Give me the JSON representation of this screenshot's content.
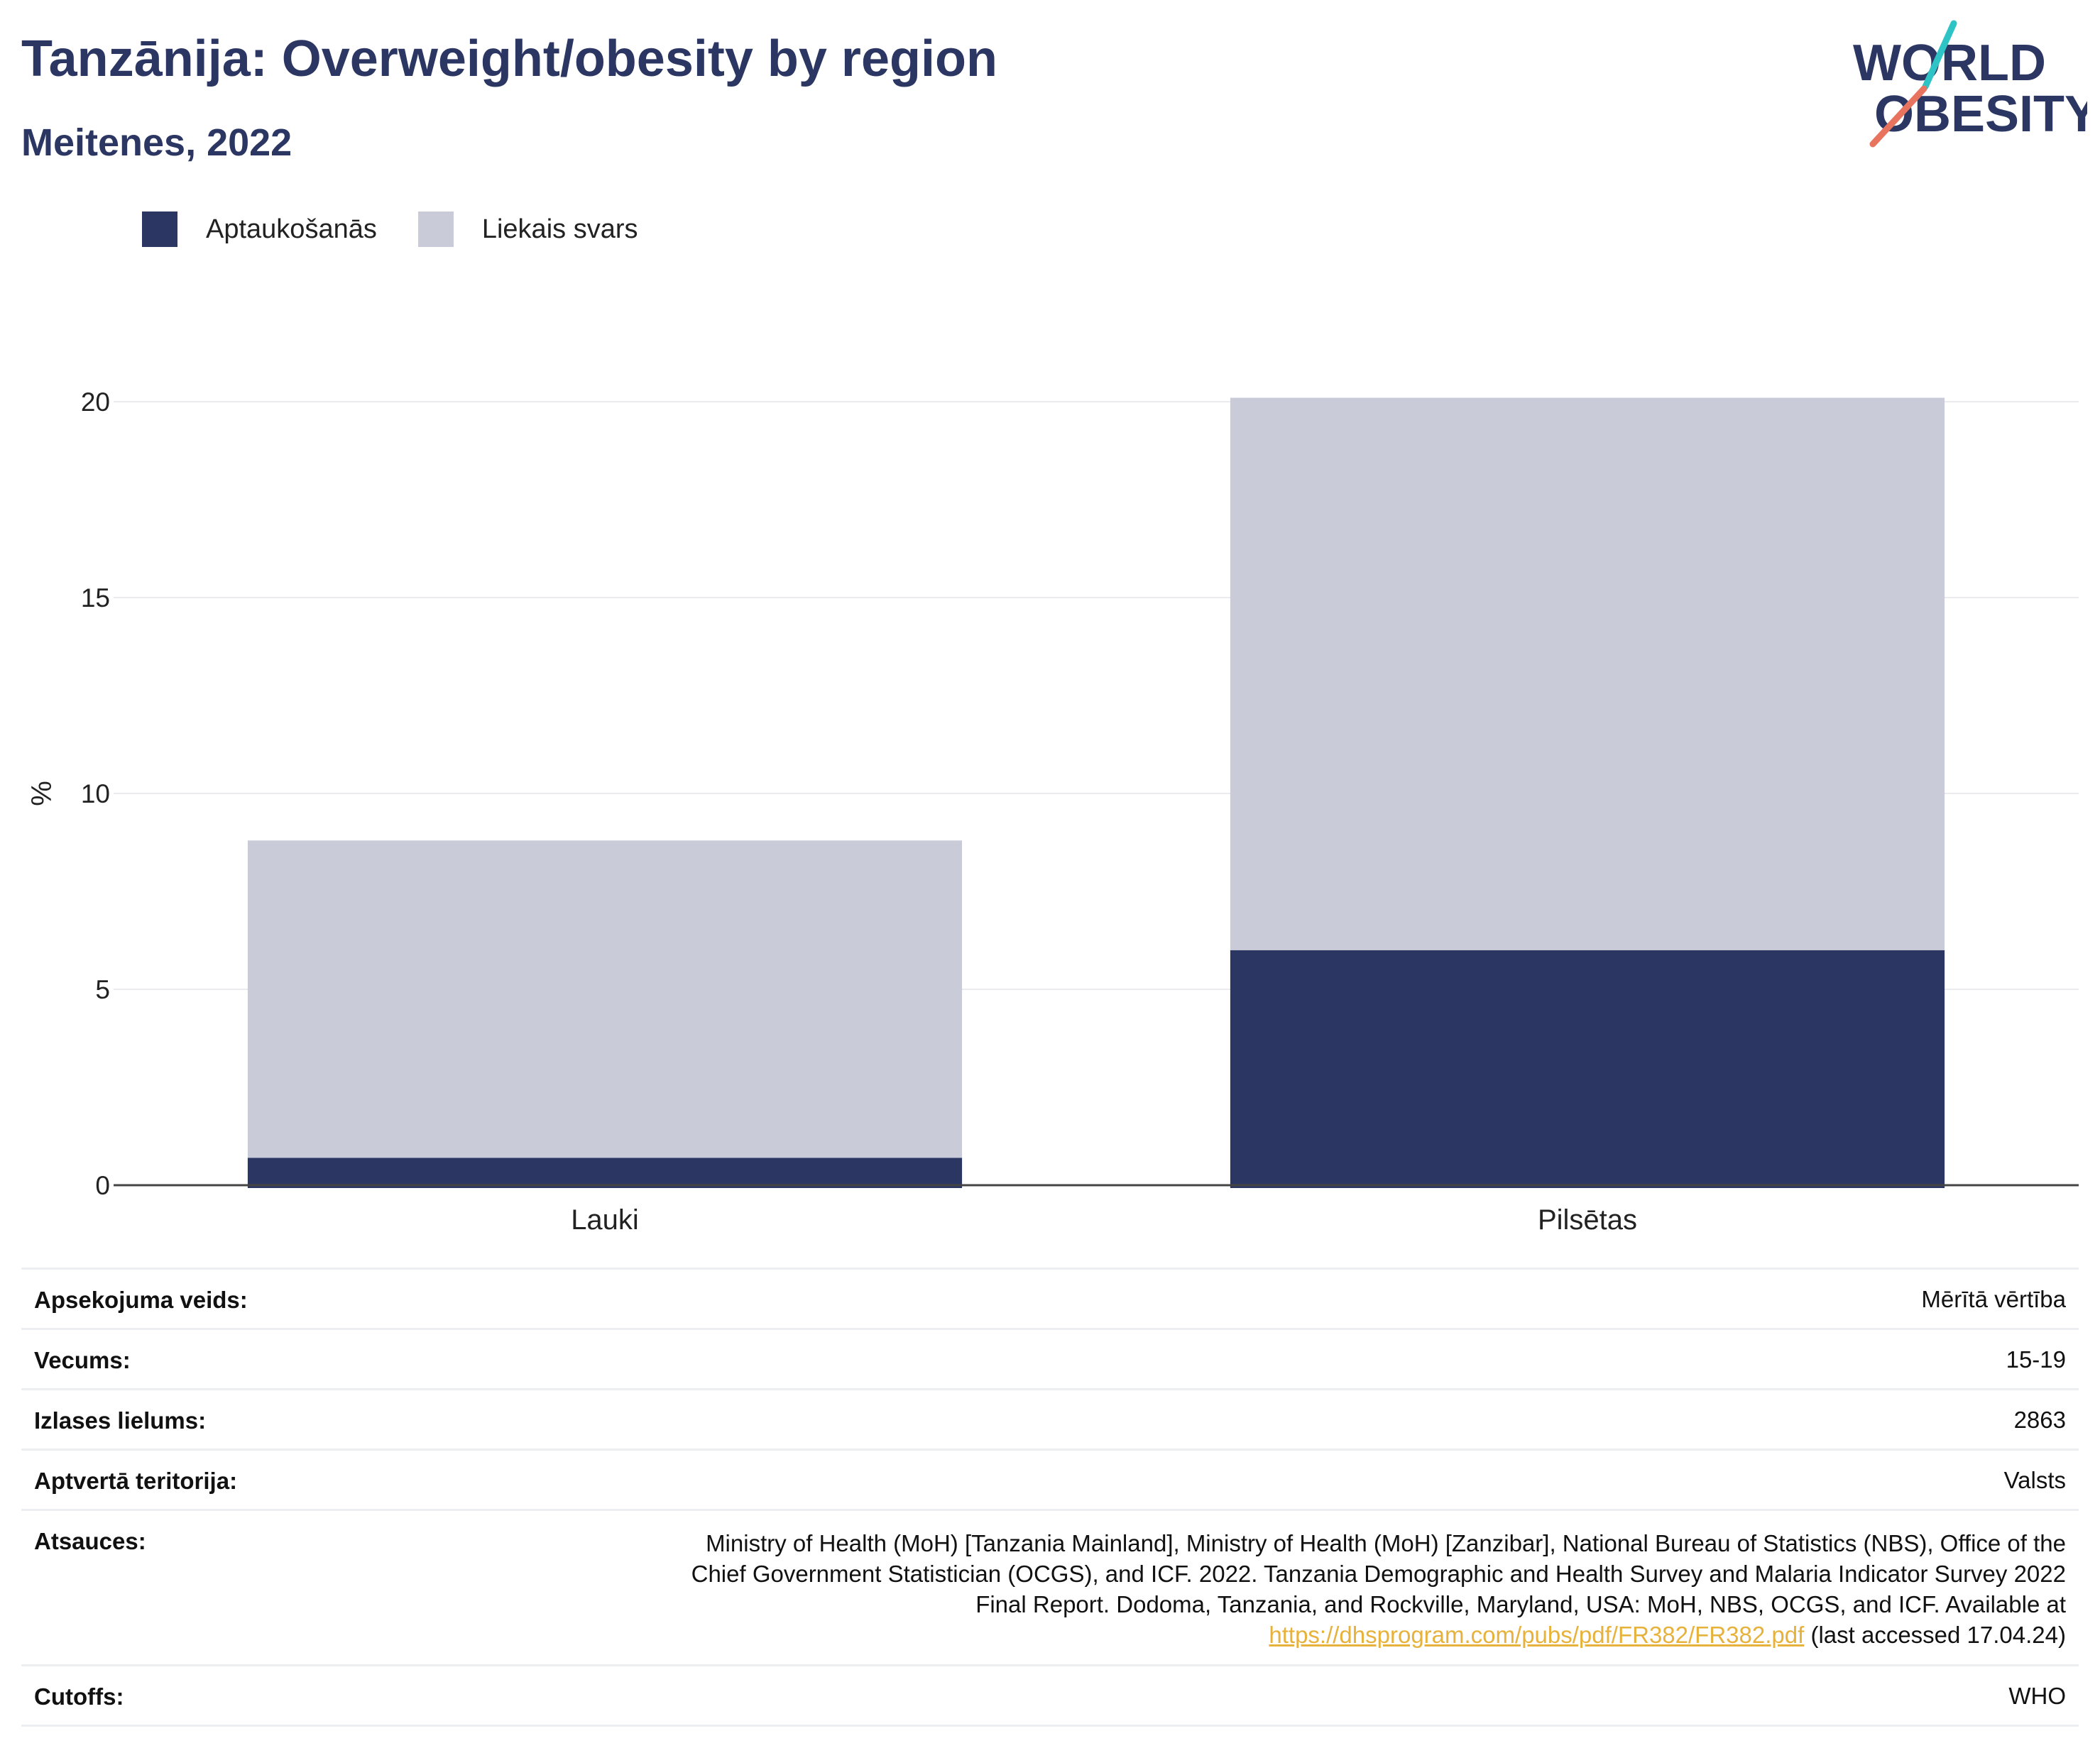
{
  "header": {
    "title": "Tanzānija: Overweight/obesity by region",
    "subtitle": "Meitenes, 2022"
  },
  "logo": {
    "line1": "WORLD",
    "line2": "OBESITY",
    "accent_colors": [
      "#2ec4c6",
      "#e8735f"
    ]
  },
  "legend": [
    {
      "label": "Aptaukošanās",
      "color": "#2b3663"
    },
    {
      "label": "Liekais svars",
      "color": "#c9ccd8"
    }
  ],
  "chart_data": {
    "type": "bar",
    "stacked": true,
    "categories": [
      "Lauki",
      "Pilsētas"
    ],
    "series": [
      {
        "name": "Aptaukošanās",
        "color": "#2b3663",
        "values": [
          0.7,
          6.0
        ]
      },
      {
        "name": "Liekais svars",
        "color": "#c9ccd8",
        "values": [
          8.1,
          14.1
        ]
      }
    ],
    "ylabel": "%",
    "ylim": [
      0,
      20.5
    ],
    "yticks": [
      0,
      5,
      10,
      15,
      20
    ],
    "grid": true,
    "legend_position": "top-left"
  },
  "info": {
    "rows": [
      {
        "label": "Apsekojuma veids:",
        "value": "Mērītā vērtība"
      },
      {
        "label": "Vecums:",
        "value": "15-19"
      },
      {
        "label": "Izlases lielums:",
        "value": "2863"
      },
      {
        "label": "Aptvertā teritorija:",
        "value": "Valsts"
      }
    ],
    "references": {
      "label": "Atsauces:",
      "line1": "Ministry of Health (MoH) [Tanzania Mainland], Ministry of Health (MoH) [Zanzibar], National Bureau of Statistics (NBS), Office of the",
      "line2": "Chief Government Statistician (OCGS), and ICF. 2022. Tanzania Demographic and Health Survey and Malaria Indicator Survey 2022",
      "line3": "Final Report. Dodoma, Tanzania, and Rockville, Maryland, USA: MoH, NBS, OCGS, and ICF. Available at",
      "link": "https://dhsprogram.com/pubs/pdf/FR382/FR382.pdf",
      "suffix": " (last accessed 17.04.24)"
    },
    "cutoffs": {
      "label": "Cutoffs:",
      "value": "WHO"
    }
  }
}
